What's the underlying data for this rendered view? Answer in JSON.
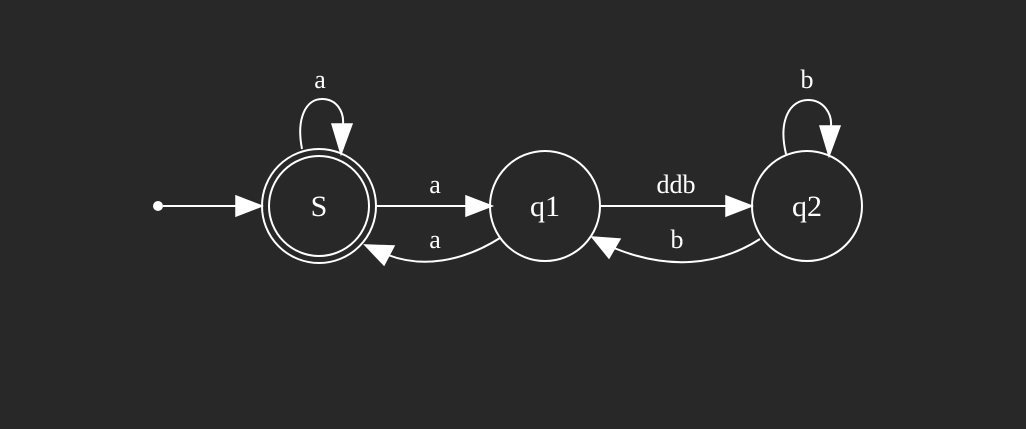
{
  "colors": {
    "background": "#282828",
    "foreground": "#ffffff"
  },
  "states": {
    "s": {
      "label": "S",
      "accepting": true
    },
    "q1": {
      "label": "q1",
      "accepting": false
    },
    "q2": {
      "label": "q2",
      "accepting": false
    }
  },
  "start": {
    "target": "S"
  },
  "transitions": {
    "s_loop": {
      "from": "S",
      "to": "S",
      "label": "a"
    },
    "s_q1": {
      "from": "S",
      "to": "q1",
      "label": "a"
    },
    "q1_s": {
      "from": "q1",
      "to": "S",
      "label": "a"
    },
    "q1_q2": {
      "from": "q1",
      "to": "q2",
      "label": "ddb"
    },
    "q2_q1": {
      "from": "q2",
      "to": "q1",
      "label": "b"
    },
    "q2_loop": {
      "from": "q2",
      "to": "q2",
      "label": "b"
    }
  }
}
